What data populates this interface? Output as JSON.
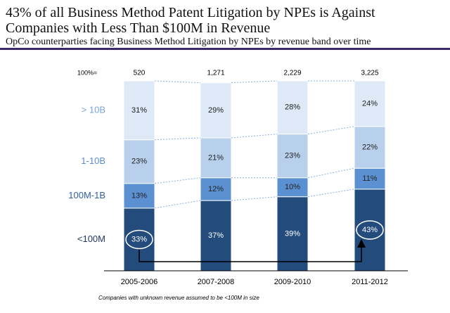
{
  "chart_data": {
    "type": "stacked_bar",
    "title": [
      "43% of all Business Method Patent Litigation by NPEs is Against",
      "Companies with Less Than $100M in Revenue"
    ],
    "subtitle": "OpCo counterparties facing Business Method Litigation by NPEs by revenue band over time",
    "totals_label": "100%=",
    "totals": [
      {
        "value": 520,
        "label": "520"
      },
      {
        "value": 1271,
        "label": "1,271"
      },
      {
        "value": 2229,
        "label": "2,229"
      },
      {
        "value": 3225,
        "label": "3,225"
      }
    ],
    "categories": [
      "2005-2006",
      "2007-2008",
      "2009-2010",
      "2011-2012"
    ],
    "ylim": [
      0,
      100
    ],
    "series": [
      {
        "name": "<100M",
        "color": "#234b7c",
        "label_color": "#1f3864",
        "values": [
          33,
          37,
          39,
          43
        ],
        "value_labels": [
          "33%",
          "37%",
          "39%",
          "43%"
        ]
      },
      {
        "name": "100M-1B",
        "color": "#5b91d0",
        "label_color": "#2f5fa5",
        "values": [
          13,
          12,
          10,
          11
        ],
        "value_labels": [
          "13%",
          "12%",
          "10%",
          "11%"
        ]
      },
      {
        "name": "1-10B",
        "color": "#b8d0ec",
        "label_color": "#5b8fc9",
        "values": [
          23,
          21,
          23,
          22
        ],
        "value_labels": [
          "23%",
          "21%",
          "23%",
          "22%"
        ]
      },
      {
        "name": "> 10B",
        "color": "#dde9f6",
        "label_color": "#7aa6d6",
        "values": [
          31,
          29,
          28,
          24
        ],
        "value_labels": [
          "31%",
          "29%",
          "28%",
          "24%"
        ]
      }
    ],
    "footnote": "Companies with unknown revenue assumed to be <100M in size"
  }
}
